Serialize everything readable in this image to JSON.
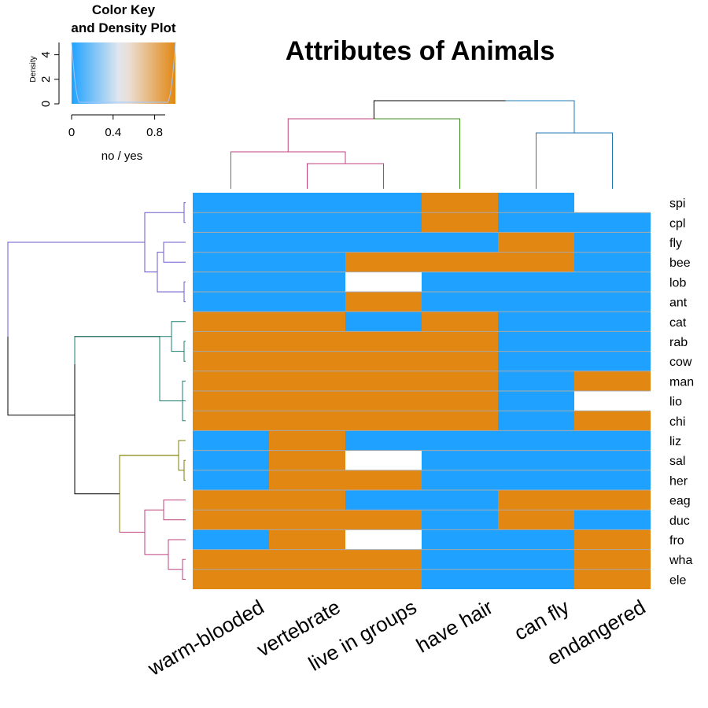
{
  "chart_data": {
    "type": "heatmap",
    "title": "Attributes of Animals",
    "columns": [
      "warm-blooded",
      "vertebrate",
      "live in groups",
      "have hair",
      "can fly",
      "endangered"
    ],
    "rows": [
      "spi",
      "cpl",
      "fly",
      "bee",
      "lob",
      "ant",
      "cat",
      "rab",
      "cow",
      "man",
      "lio",
      "chi",
      "liz",
      "sal",
      "her",
      "eag",
      "duc",
      "fro",
      "wha",
      "ele"
    ],
    "values": [
      [
        0,
        0,
        0,
        1,
        0,
        null
      ],
      [
        0,
        0,
        0,
        1,
        0,
        0
      ],
      [
        0,
        0,
        0,
        0,
        1,
        0
      ],
      [
        0,
        0,
        1,
        1,
        1,
        0
      ],
      [
        0,
        0,
        null,
        0,
        0,
        0
      ],
      [
        0,
        0,
        1,
        0,
        0,
        0
      ],
      [
        1,
        1,
        0,
        1,
        0,
        0
      ],
      [
        1,
        1,
        1,
        1,
        0,
        0
      ],
      [
        1,
        1,
        1,
        1,
        0,
        0
      ],
      [
        1,
        1,
        1,
        1,
        0,
        1
      ],
      [
        1,
        1,
        1,
        1,
        0,
        null
      ],
      [
        1,
        1,
        1,
        1,
        0,
        1
      ],
      [
        0,
        1,
        0,
        0,
        0,
        0
      ],
      [
        0,
        1,
        null,
        0,
        0,
        0
      ],
      [
        0,
        1,
        1,
        0,
        0,
        0
      ],
      [
        1,
        1,
        0,
        0,
        1,
        1
      ],
      [
        1,
        1,
        1,
        0,
        1,
        0
      ],
      [
        0,
        1,
        null,
        0,
        0,
        1
      ],
      [
        1,
        1,
        1,
        0,
        0,
        1
      ],
      [
        1,
        1,
        1,
        0,
        0,
        1
      ]
    ],
    "colors": {
      "no": "#1fa2ff",
      "yes": "#e28712",
      "missing": "#ffffff",
      "grid": "#a9a9a9"
    },
    "row_clusters": [
      {
        "color": "#6a5acd",
        "rows": [
          0,
          5
        ]
      },
      {
        "color": "#1a7f6e",
        "rows": [
          6,
          11
        ]
      },
      {
        "color": "#7f7f00",
        "rows": [
          12,
          14
        ]
      },
      {
        "color": "#c0407f",
        "rows": [
          15,
          19
        ]
      }
    ],
    "column_clusters": [
      {
        "color": "#c0407f",
        "columns": [
          0,
          2
        ]
      },
      {
        "color": "#3a8a1a",
        "columns": [
          3,
          3
        ]
      },
      {
        "color": "#1f78b4",
        "columns": [
          4,
          5
        ]
      }
    ],
    "color_key": {
      "title_line1": "Color Key",
      "title_line2": "and Density Plot",
      "xlabel": "no / yes",
      "ylabel": "Density",
      "x_ticks": [
        "0",
        "0.4",
        "0.8"
      ],
      "x_tick_values": [
        0,
        0.4,
        0.8
      ],
      "y_ticks": [
        "0",
        "2",
        "4"
      ],
      "y_tick_values": [
        0,
        2,
        4
      ],
      "y_range": [
        0,
        5
      ]
    }
  }
}
